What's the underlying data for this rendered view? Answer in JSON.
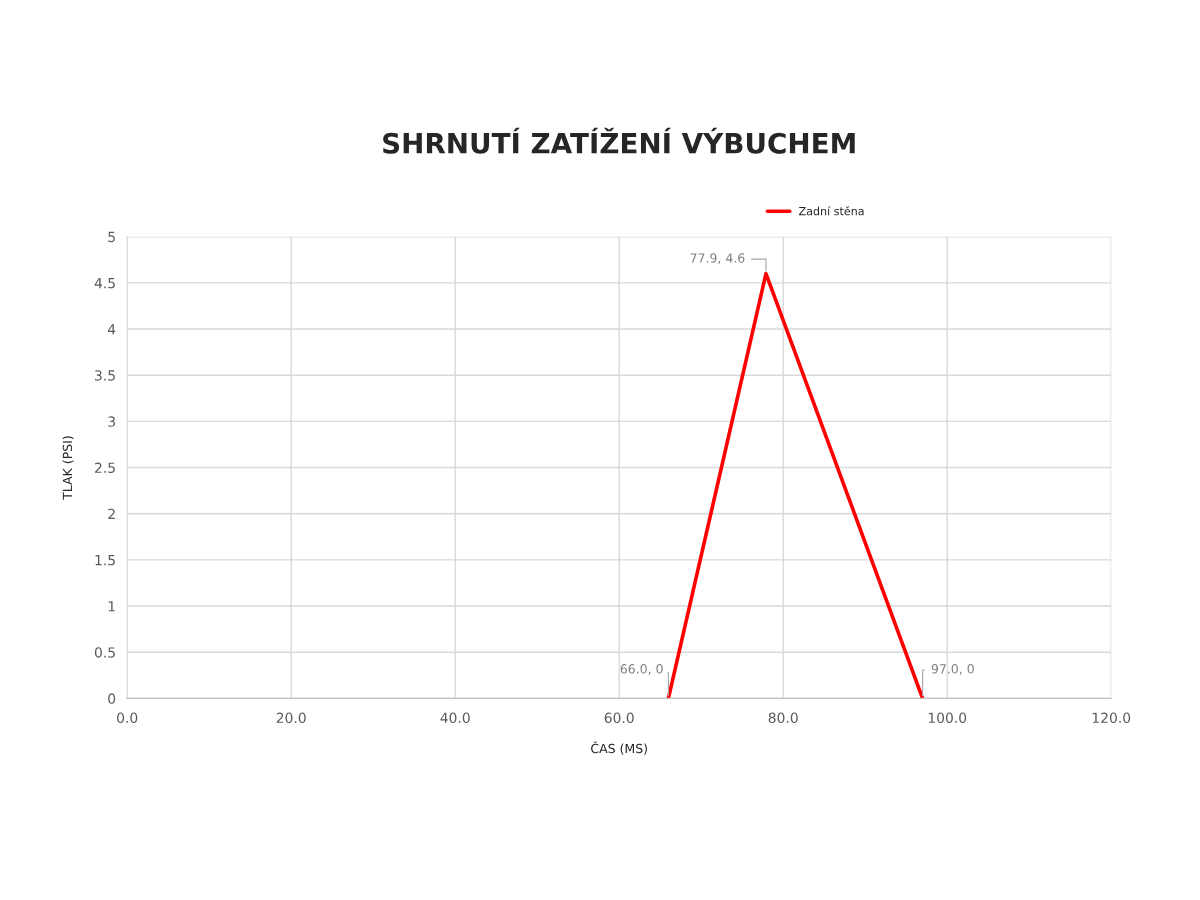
{
  "chart_data": {
    "type": "line",
    "title": "SHRNUTÍ ZATÍŽENÍ VÝBUCHEM",
    "xlabel": "ČAS (MS)",
    "ylabel": "TLAK (PSI)",
    "series": [
      {
        "name": "Zadní stěna",
        "color": "#ff0000",
        "x": [
          66.0,
          77.9,
          97.0
        ],
        "values": [
          0,
          4.6,
          0
        ]
      }
    ],
    "xlim": [
      0,
      120
    ],
    "xticks": [
      {
        "value": 0,
        "label": "0.0"
      },
      {
        "value": 20,
        "label": "20.0"
      },
      {
        "value": 40,
        "label": "40.0"
      },
      {
        "value": 60,
        "label": "60.0"
      },
      {
        "value": 80,
        "label": "80.0"
      },
      {
        "value": 100,
        "label": "100.0"
      },
      {
        "value": 120,
        "label": "120.0"
      }
    ],
    "ylim": [
      0,
      5
    ],
    "yticks": [
      0,
      0.5,
      1,
      1.5,
      2,
      2.5,
      3,
      3.5,
      4,
      4.5,
      5
    ],
    "annotations": [
      {
        "text": "66.0, 0",
        "x": 66.0,
        "y": 0
      },
      {
        "text": "77.9, 4.6",
        "x": 77.9,
        "y": 4.6
      },
      {
        "text": "97.0, 0",
        "x": 97.0,
        "y": 0
      }
    ],
    "grid": true,
    "legend": "top",
    "marker": "none",
    "line_style": "solid"
  }
}
